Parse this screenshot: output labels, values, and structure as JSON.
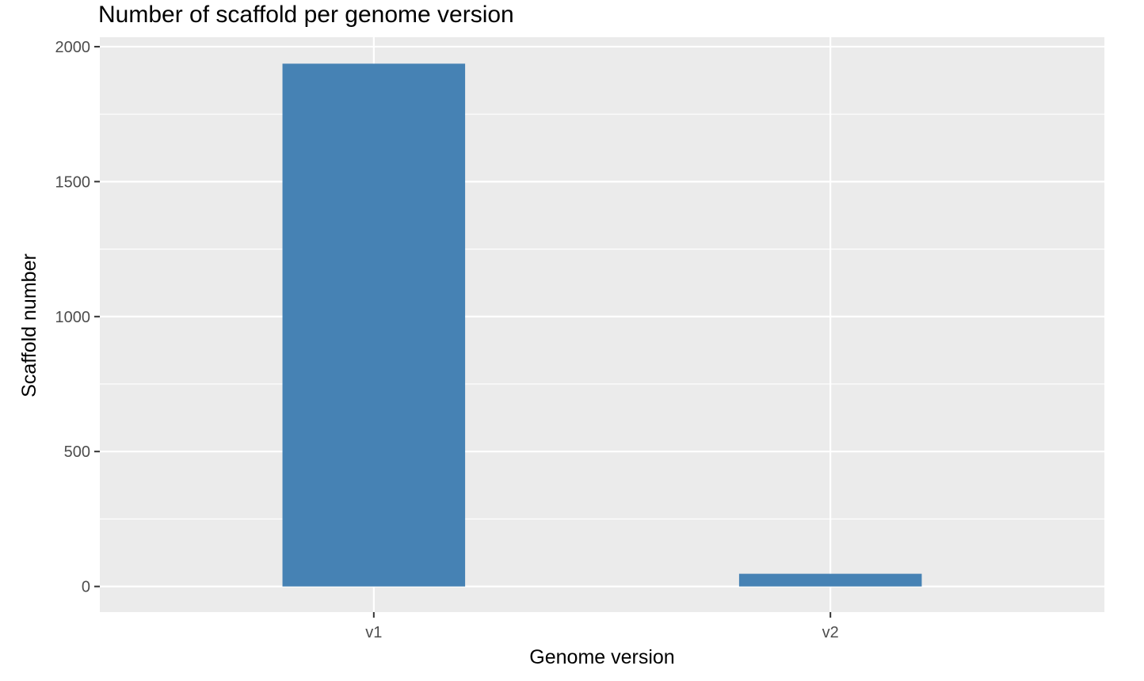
{
  "chart_data": {
    "type": "bar",
    "title": "Number of scaffold per genome version",
    "xlabel": "Genome version",
    "ylabel": "Scaffold number",
    "categories": [
      "v1",
      "v2"
    ],
    "values": [
      1937,
      47
    ],
    "ylim": [
      -95,
      2035
    ],
    "yticks": [
      0,
      500,
      1000,
      1500,
      2000
    ],
    "ytick_labels": [
      "0",
      "500",
      "1000",
      "1500",
      "2000"
    ],
    "grid": true,
    "legend": "none",
    "colors": {
      "bar": "#4682B4",
      "panel_background": "#EBEBEB",
      "grid": "#FFFFFF",
      "tick_text": "#4D4D4D",
      "axis_ticks": "#333333"
    }
  }
}
